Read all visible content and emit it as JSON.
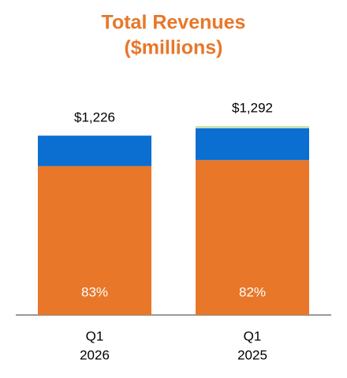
{
  "chart_data": {
    "type": "stacked-bar",
    "title": [
      "Total Revenues",
      "($millions)"
    ],
    "categories": [
      [
        "Q1",
        "2026"
      ],
      [
        "Q1",
        "2025"
      ]
    ],
    "series": [
      {
        "color": "#e8772a",
        "values": [
          1018,
          1059
        ],
        "share_values": [
          83,
          82
        ],
        "share_labels": [
          "83%",
          "82%"
        ]
      },
      {
        "color": "#0a6fd1",
        "values": [
          208,
          218
        ]
      },
      {
        "color": "#c6e4b0",
        "values": [
          0,
          15
        ]
      }
    ],
    "totals": [
      1226,
      1292
    ],
    "total_labels": [
      "$1,226",
      "$1,292"
    ]
  }
}
